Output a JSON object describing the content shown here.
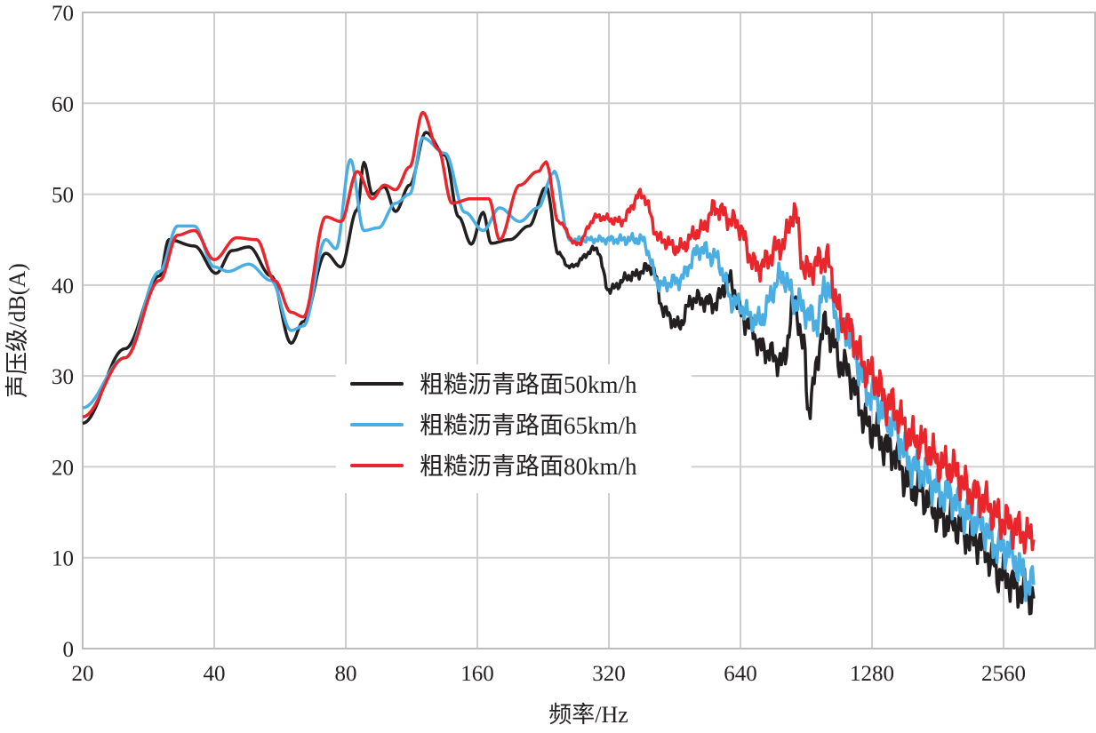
{
  "chart_data": {
    "type": "line",
    "title": "",
    "xlabel": "频率/Hz",
    "ylabel": "声压级/dB(A)",
    "xscale": "log2",
    "xlim": [
      20,
      4100
    ],
    "ylim": [
      0,
      70
    ],
    "xticks": [
      20,
      40,
      80,
      160,
      320,
      640,
      1280,
      2560
    ],
    "xtick_labels": [
      "20",
      "40",
      "80",
      "160",
      "320",
      "640",
      "1280",
      "2560"
    ],
    "yticks": [
      0,
      10,
      20,
      30,
      40,
      50,
      60,
      70
    ],
    "ytick_labels": [
      "0",
      "10",
      "20",
      "30",
      "40",
      "50",
      "60",
      "70"
    ],
    "grid": true,
    "legend_position": "center",
    "series": [
      {
        "name": "粗糙沥青路面50km/h",
        "color": "#231f20",
        "x": [
          20,
          25,
          30,
          31.5,
          36,
          40.4,
          44,
          48,
          54,
          60,
          64,
          72,
          78,
          85,
          88,
          92,
          98,
          104,
          112,
          122,
          135,
          145,
          155,
          165,
          172,
          190,
          210,
          230,
          245,
          260,
          300,
          320,
          360,
          400,
          430,
          460,
          500,
          560,
          600,
          660,
          720,
          800,
          850,
          900,
          911,
          1000,
          1100,
          1280,
          1400,
          1600,
          1900,
          2200,
          2560,
          2800,
          3000
        ],
        "y": [
          24.8,
          33,
          41,
          45,
          44.3,
          41.3,
          43.8,
          44.2,
          41,
          33.6,
          36,
          43.5,
          42,
          48.3,
          53.5,
          50,
          50.8,
          48.1,
          51,
          56.8,
          54.3,
          47.5,
          44.5,
          48,
          44.6,
          45,
          46.5,
          50.8,
          43.5,
          42,
          44,
          39.5,
          41,
          42,
          37,
          35.5,
          38.5,
          38,
          40.5,
          36,
          33,
          31.5,
          38,
          32.5,
          26.5,
          35.5,
          31,
          24,
          22,
          17.5,
          14,
          12,
          8,
          6.5,
          5.5
        ]
      },
      {
        "name": "粗糙沥青路面65km/h",
        "color": "#4aaee3",
        "x": [
          20,
          25,
          30,
          33,
          36,
          40,
          43,
          48,
          54,
          60,
          64,
          72,
          76,
          82,
          88,
          95,
          104,
          112,
          120,
          135,
          150,
          165,
          180,
          200,
          220,
          240,
          260,
          300,
          340,
          380,
          420,
          460,
          520,
          560,
          620,
          700,
          800,
          860,
          960,
          1000,
          1100,
          1280,
          1400,
          1600,
          1900,
          2200,
          2560,
          3000
        ],
        "y": [
          26.5,
          32,
          41.5,
          46.5,
          46.5,
          42,
          41.5,
          42.3,
          40.5,
          35,
          35.5,
          45,
          44,
          53.8,
          46,
          46.3,
          49,
          50,
          56.2,
          54.5,
          48,
          46,
          48.5,
          47,
          48.5,
          52.5,
          45,
          45,
          45,
          45,
          40,
          40.5,
          44,
          43,
          38,
          36,
          41,
          38,
          36,
          40,
          35,
          28,
          25,
          20,
          17,
          14,
          11,
          7
        ]
      },
      {
        "name": "粗糙沥青路面80km/h",
        "color": "#e8262b",
        "x": [
          20,
          25,
          30,
          33,
          36,
          40,
          45,
          50,
          55,
          60,
          64,
          72,
          78,
          85,
          92,
          98,
          104,
          112,
          120,
          130,
          140,
          155,
          170,
          180,
          200,
          220,
          230,
          245,
          270,
          300,
          340,
          380,
          420,
          460,
          520,
          560,
          620,
          700,
          800,
          850,
          900,
          1000,
          1100,
          1280,
          1400,
          1600,
          1900,
          2200,
          2560,
          3000
        ],
        "y": [
          25.5,
          32,
          40.5,
          45.5,
          46,
          42.8,
          45.2,
          45,
          40.5,
          37,
          36.5,
          47.5,
          47,
          52.5,
          49.5,
          51,
          50.5,
          53,
          59,
          55,
          49,
          49.5,
          49.5,
          45,
          51,
          52.5,
          53.5,
          47,
          44.5,
          47.5,
          47,
          50,
          45,
          44,
          46,
          48.5,
          47,
          42,
          44.5,
          48,
          41.5,
          43,
          36,
          30,
          27,
          23,
          20,
          17,
          14,
          12
        ]
      }
    ]
  }
}
